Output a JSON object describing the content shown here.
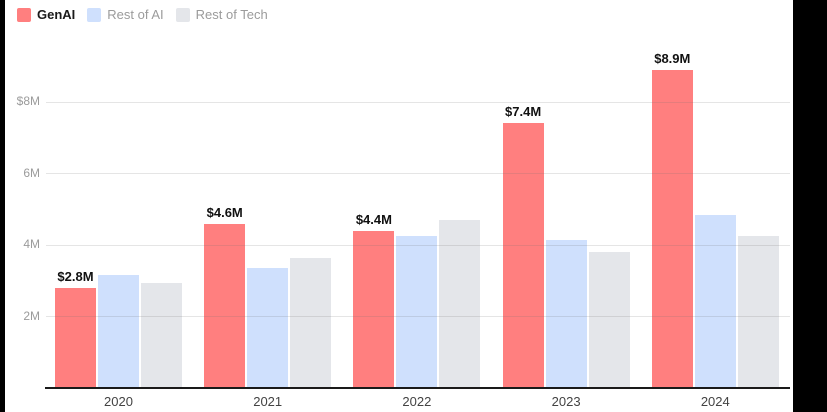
{
  "legend": {
    "items": [
      {
        "label": "GenAI",
        "swatch": "#ff7f7f",
        "emphasis": true
      },
      {
        "label": "Rest of AI",
        "swatch": "#cfe0fd",
        "emphasis": false
      },
      {
        "label": "Rest of Tech",
        "swatch": "#e4e6ea",
        "emphasis": false
      }
    ]
  },
  "chart_data": {
    "type": "bar",
    "title": "",
    "xlabel": "",
    "ylabel": "",
    "categories": [
      "2020",
      "2021",
      "2022",
      "2023",
      "2024"
    ],
    "series": [
      {
        "name": "GenAI",
        "color": "#ff7f7f",
        "values": [
          2.8,
          4.6,
          4.4,
          7.4,
          8.9
        ],
        "data_labels": [
          "$2.8M",
          "$4.6M",
          "$4.4M",
          "$7.4M",
          "$8.9M"
        ]
      },
      {
        "name": "Rest of AI",
        "color": "#cfe0fd",
        "values": [
          3.15,
          3.35,
          4.25,
          4.15,
          4.85
        ],
        "data_labels": []
      },
      {
        "name": "Rest of Tech",
        "color": "#e4e6ea",
        "values": [
          2.95,
          3.65,
          4.7,
          3.8,
          4.25
        ],
        "data_labels": []
      }
    ],
    "y_ticks": [
      {
        "value": 8,
        "label": "$8M"
      },
      {
        "value": 6,
        "label": "6M"
      },
      {
        "value": 4,
        "label": "4M"
      },
      {
        "value": 2,
        "label": "2M"
      }
    ],
    "ylim": [
      0,
      9.4
    ],
    "grid": true,
    "legend_position": "top-left"
  },
  "colors": {
    "background": "#ffffff",
    "side_bands": "#000000",
    "axis_line": "#1a1a1a",
    "gridline": "#e8e8e8",
    "y_tick_text": "#9b9b9b",
    "x_tick_text": "#434343",
    "value_label_text": "#111111"
  }
}
